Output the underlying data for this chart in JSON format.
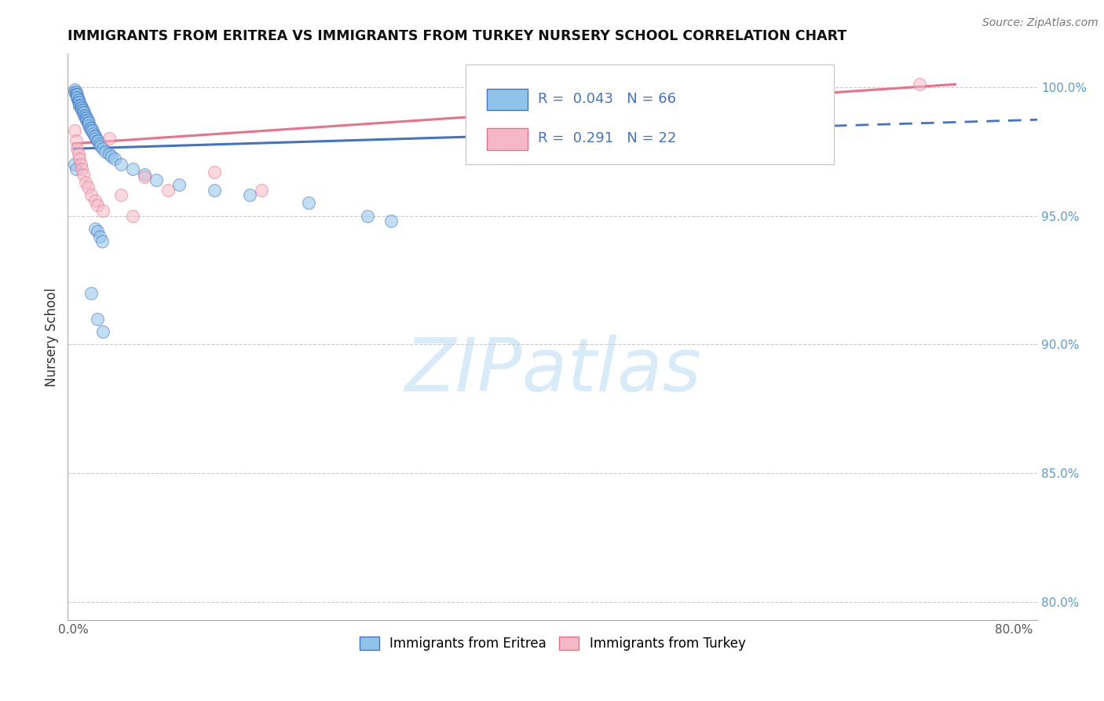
{
  "title": "IMMIGRANTS FROM ERITREA VS IMMIGRANTS FROM TURKEY NURSERY SCHOOL CORRELATION CHART",
  "source": "Source: ZipAtlas.com",
  "ylabel": "Nursery School",
  "xlim": [
    -0.005,
    0.82
  ],
  "ylim": [
    0.793,
    1.013
  ],
  "ytick_vals": [
    1.0,
    0.95,
    0.9,
    0.85,
    0.8
  ],
  "ytick_labels": [
    "100.0%",
    "95.0%",
    "90.0%",
    "85.0%",
    "80.0%"
  ],
  "xtick_positions": [
    0.0,
    0.1,
    0.2,
    0.3,
    0.4,
    0.5,
    0.6,
    0.7,
    0.8
  ],
  "xtick_labels": [
    "0.0%",
    "",
    "",
    "",
    "",
    "",
    "",
    "",
    "80.0%"
  ],
  "legend_entries": [
    "Immigrants from Eritrea",
    "Immigrants from Turkey"
  ],
  "R_eritrea": 0.043,
  "N_eritrea": 66,
  "R_turkey": 0.291,
  "N_turkey": 22,
  "color_eritrea": "#8fc4e8",
  "color_turkey": "#f5b8c8",
  "line_color_eritrea": "#4472c4",
  "line_color_turkey": "#e8728a",
  "watermark": "ZIPatlas",
  "watermark_color": "#d0e8f8"
}
